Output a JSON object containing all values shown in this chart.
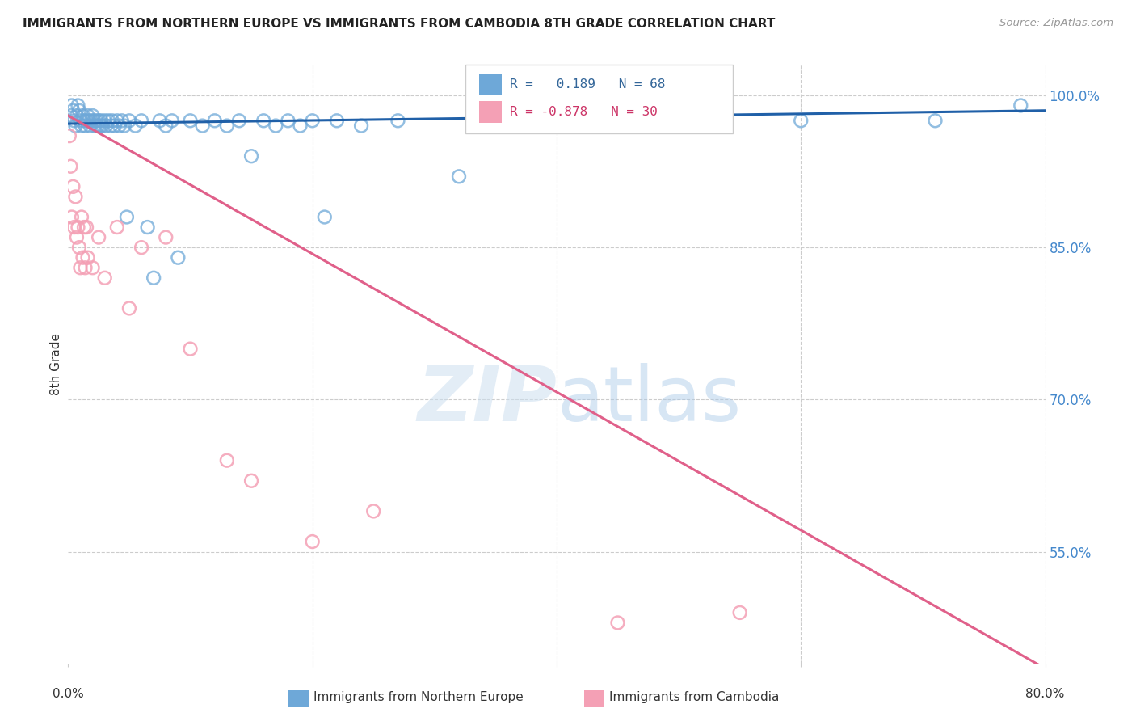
{
  "title": "IMMIGRANTS FROM NORTHERN EUROPE VS IMMIGRANTS FROM CAMBODIA 8TH GRADE CORRELATION CHART",
  "source": "Source: ZipAtlas.com",
  "ylabel": "8th Grade",
  "ytick_labels": [
    "100.0%",
    "85.0%",
    "70.0%",
    "55.0%"
  ],
  "ytick_values": [
    1.0,
    0.85,
    0.7,
    0.55
  ],
  "blue_color": "#6ea8d8",
  "pink_color": "#f4a0b5",
  "blue_line_color": "#2060a8",
  "pink_line_color": "#e0608a",
  "watermark_zip": "ZIP",
  "watermark_atlas": "atlas",
  "blue_x": [
    0.002,
    0.003,
    0.004,
    0.005,
    0.006,
    0.007,
    0.008,
    0.009,
    0.01,
    0.011,
    0.012,
    0.013,
    0.014,
    0.015,
    0.016,
    0.017,
    0.018,
    0.019,
    0.02,
    0.021,
    0.022,
    0.023,
    0.024,
    0.025,
    0.026,
    0.027,
    0.028,
    0.03,
    0.031,
    0.033,
    0.035,
    0.036,
    0.038,
    0.04,
    0.042,
    0.044,
    0.046,
    0.048,
    0.05,
    0.055,
    0.06,
    0.065,
    0.07,
    0.075,
    0.08,
    0.085,
    0.09,
    0.1,
    0.11,
    0.12,
    0.13,
    0.14,
    0.15,
    0.16,
    0.17,
    0.18,
    0.19,
    0.2,
    0.21,
    0.22,
    0.24,
    0.27,
    0.32,
    0.37,
    0.5,
    0.6,
    0.71,
    0.78
  ],
  "blue_y": [
    0.98,
    0.99,
    0.985,
    0.975,
    0.97,
    0.98,
    0.99,
    0.985,
    0.975,
    0.97,
    0.98,
    0.975,
    0.97,
    0.975,
    0.98,
    0.975,
    0.97,
    0.975,
    0.98,
    0.975,
    0.97,
    0.975,
    0.97,
    0.975,
    0.97,
    0.975,
    0.97,
    0.975,
    0.97,
    0.975,
    0.97,
    0.975,
    0.97,
    0.975,
    0.97,
    0.975,
    0.97,
    0.88,
    0.975,
    0.97,
    0.975,
    0.87,
    0.82,
    0.975,
    0.97,
    0.975,
    0.84,
    0.975,
    0.97,
    0.975,
    0.97,
    0.975,
    0.94,
    0.975,
    0.97,
    0.975,
    0.97,
    0.975,
    0.88,
    0.975,
    0.97,
    0.975,
    0.92,
    0.97,
    0.975,
    0.975,
    0.975,
    0.99
  ],
  "pink_x": [
    0.001,
    0.002,
    0.003,
    0.004,
    0.005,
    0.006,
    0.007,
    0.008,
    0.009,
    0.01,
    0.011,
    0.012,
    0.013,
    0.014,
    0.015,
    0.016,
    0.02,
    0.025,
    0.03,
    0.04,
    0.05,
    0.06,
    0.08,
    0.1,
    0.13,
    0.15,
    0.2,
    0.25,
    0.45,
    0.55
  ],
  "pink_y": [
    0.96,
    0.93,
    0.88,
    0.91,
    0.87,
    0.9,
    0.86,
    0.87,
    0.85,
    0.83,
    0.88,
    0.84,
    0.87,
    0.83,
    0.87,
    0.84,
    0.83,
    0.86,
    0.82,
    0.87,
    0.79,
    0.85,
    0.86,
    0.75,
    0.64,
    0.62,
    0.56,
    0.59,
    0.48,
    0.49
  ],
  "xlim": [
    0.0,
    0.8
  ],
  "ylim": [
    0.44,
    1.03
  ],
  "blue_line_x": [
    0.0,
    0.8
  ],
  "blue_line_y": [
    0.972,
    0.985
  ],
  "pink_line_x": [
    0.0,
    0.8
  ],
  "pink_line_y": [
    0.98,
    0.435
  ],
  "legend_blue_label": "R =   0.189   N = 68",
  "legend_pink_label": "R = -0.878   N = 30",
  "bottom_label_blue": "Immigrants from Northern Europe",
  "bottom_label_pink": "Immigrants from Cambodia"
}
